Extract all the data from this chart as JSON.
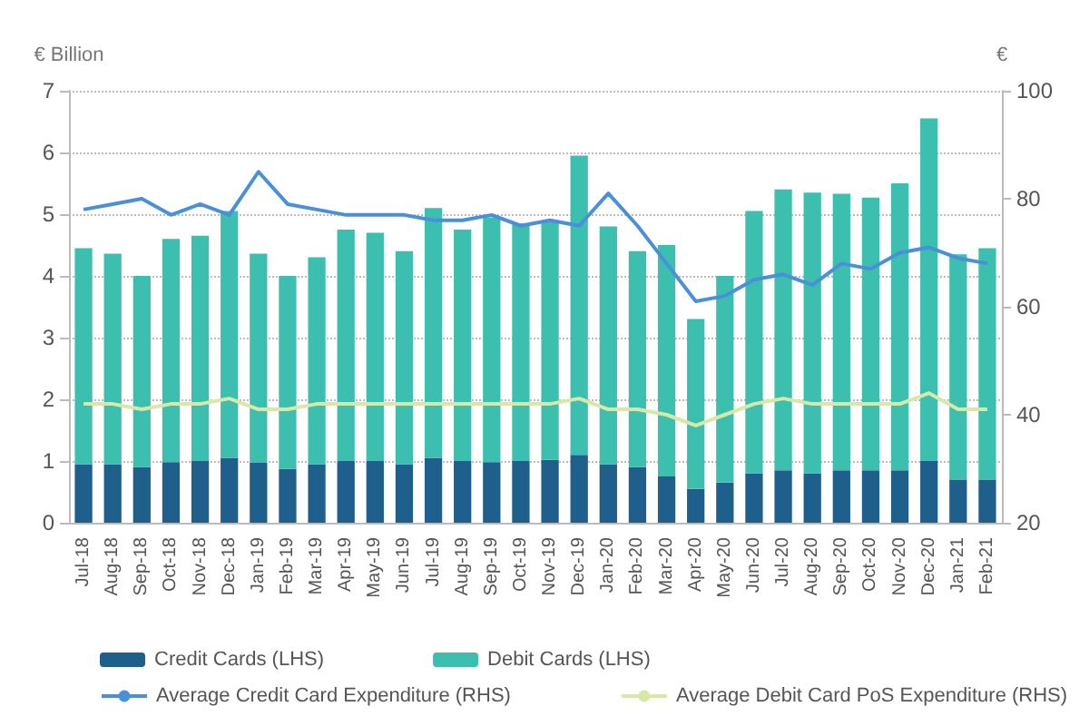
{
  "chart_data": {
    "type": "bar",
    "ylabel": "€ Billion",
    "y2label": "€",
    "categories": [
      "Jul-18",
      "Aug-18",
      "Sep-18",
      "Oct-18",
      "Nov-18",
      "Dec-18",
      "Jan-19",
      "Feb-19",
      "Mar-19",
      "Apr-19",
      "May-19",
      "Jun-19",
      "Jul-19",
      "Aug-19",
      "Sep-19",
      "Oct-19",
      "Nov-19",
      "Dec-19",
      "Jan-20",
      "Feb-20",
      "Mar-20",
      "Apr-20",
      "May-20",
      "Jun-20",
      "Jul-20",
      "Aug-20",
      "Sep-20",
      "Oct-20",
      "Nov-20",
      "Dec-20",
      "Jan-21",
      "Feb-21"
    ],
    "series": [
      {
        "name": "Credit Cards (LHS)",
        "color": "#1f5f8b",
        "values": [
          0.95,
          0.95,
          0.9,
          0.98,
          1.0,
          1.05,
          0.97,
          0.87,
          0.95,
          1.0,
          1.0,
          0.95,
          1.05,
          1.0,
          0.98,
          1.0,
          1.02,
          1.1,
          0.95,
          0.9,
          0.75,
          0.55,
          0.65,
          0.8,
          0.85,
          0.8,
          0.85,
          0.85,
          0.85,
          1.0,
          0.7,
          0.7
        ]
      },
      {
        "name": "Debit Cards (LHS)",
        "color": "#3dbfb0",
        "values": [
          3.5,
          3.41,
          3.1,
          3.62,
          3.65,
          4.0,
          3.39,
          3.13,
          3.35,
          3.75,
          3.7,
          3.45,
          4.05,
          3.75,
          3.97,
          3.85,
          3.88,
          4.85,
          3.85,
          3.5,
          3.75,
          2.75,
          3.35,
          4.25,
          4.55,
          4.55,
          4.48,
          4.42,
          4.65,
          5.55,
          3.65,
          3.75
        ]
      },
      {
        "name": "Average Credit Card Expenditure (RHS)",
        "type": "line",
        "axis": "y2",
        "color": "#4a90d9",
        "values": [
          78,
          79,
          80,
          77,
          79,
          77,
          85,
          79,
          78,
          77,
          77,
          77,
          76,
          76,
          77,
          75,
          76,
          75,
          81,
          75,
          68,
          61,
          62,
          65,
          66,
          64,
          68,
          67,
          70,
          71,
          69,
          68
        ]
      },
      {
        "name": "Average Debit Card PoS Expenditure (RHS)",
        "type": "line",
        "axis": "y2",
        "color": "#d9e8a8",
        "values": [
          42,
          42,
          41,
          42,
          42,
          43,
          41,
          41,
          42,
          42,
          42,
          42,
          42,
          42,
          42,
          42,
          42,
          43,
          41,
          41,
          40,
          38,
          40,
          42,
          43,
          42,
          42,
          42,
          42,
          44,
          41,
          41
        ]
      }
    ],
    "stacked": true,
    "ylim": [
      0,
      7
    ],
    "yticks": [
      0,
      1,
      2,
      3,
      4,
      5,
      6,
      7
    ],
    "y2lim": [
      20,
      100
    ],
    "y2ticks": [
      20,
      40,
      60,
      80,
      100
    ],
    "grid": "y",
    "legend": "bottom",
    "marker": "none"
  }
}
